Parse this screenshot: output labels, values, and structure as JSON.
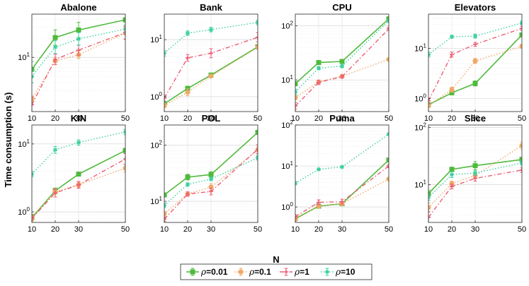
{
  "chart_data": {
    "type": "line",
    "scale": "log-y",
    "x": [
      10,
      20,
      30,
      50
    ],
    "xlabel": "N",
    "ylabel": "Time consumption (s)",
    "legend": {
      "placement": "bottom-center",
      "entries": [
        {
          "name": "ρ=0.01",
          "symbol": "ρ",
          "value": "=0.01",
          "color": "#4fba3c",
          "marker": "square",
          "dash": "solid"
        },
        {
          "name": "ρ=0.1",
          "symbol": "ρ",
          "value": "=0.1",
          "color": "#f0a866",
          "marker": "circle",
          "dash": "dot"
        },
        {
          "name": "ρ=1",
          "symbol": "ρ",
          "value": "=1",
          "color": "#ee5c73",
          "marker": "plus",
          "dash": "dashdot"
        },
        {
          "name": "ρ=10",
          "symbol": "ρ",
          "value": "=10",
          "color": "#3dcf9f",
          "marker": "asterisk",
          "dash": "dot"
        }
      ]
    },
    "panels": [
      {
        "title": "Abalone",
        "yrange": [
          1.4,
          48
        ],
        "yticks": [
          {
            "value": 10,
            "label": "10",
            "exp": "1"
          }
        ],
        "series": [
          [
            6.5,
            20.5,
            27,
            39
          ],
          [
            2.2,
            8.8,
            11,
            24
          ],
          [
            1.8,
            9.3,
            13,
            24.5
          ],
          [
            5,
            14.5,
            19.5,
            28
          ]
        ],
        "errors": [
          [
            0.12,
            0.12,
            0.12,
            0.1
          ],
          [
            0.05,
            0.06,
            0.06,
            0.1
          ],
          [
            0.12,
            0.08,
            0.08,
            0.1
          ],
          [
            0.1,
            0.1,
            0.1,
            0.06
          ]
        ]
      },
      {
        "title": "Bank",
        "yrange": [
          0.55,
          28
        ],
        "yticks": [
          {
            "value": 1,
            "label": "10",
            "exp": "0"
          },
          {
            "value": 10,
            "label": "10",
            "exp": "1"
          }
        ],
        "series": [
          [
            0.75,
            1.4,
            2.4,
            7.5
          ],
          [
            0.7,
            1.2,
            2.3,
            7.3
          ],
          [
            0.95,
            4.8,
            5.8,
            11
          ],
          [
            5.8,
            13,
            15,
            20
          ]
        ],
        "errors": [
          [
            0.04,
            0.04,
            0.03,
            0.02
          ],
          [
            0.04,
            0.06,
            0.03,
            0.02
          ],
          [
            0.05,
            0.06,
            0.08,
            0.08
          ],
          [
            0.05,
            0.04,
            0.04,
            0.04
          ]
        ]
      },
      {
        "title": "CPU",
        "yrange": [
          2.6,
          165
        ],
        "yticks": [
          {
            "value": 10,
            "label": "10",
            "exp": "1"
          },
          {
            "value": 100,
            "label": "10",
            "exp": "2"
          }
        ],
        "series": [
          [
            8.5,
            21,
            22,
            135
          ],
          [
            4.7,
            9.2,
            11.7,
            24
          ],
          [
            3.3,
            9,
            11.5,
            88
          ],
          [
            6,
            16.5,
            18,
            125
          ]
        ],
        "errors": [
          [
            0.03,
            0.03,
            0.03,
            0.02
          ],
          [
            0.04,
            0.03,
            0.03,
            0.02
          ],
          [
            0.06,
            0.04,
            0.03,
            0.03
          ],
          [
            0.05,
            0.03,
            0.03,
            0.03
          ]
        ]
      },
      {
        "title": "Elevators",
        "yrange": [
          0.55,
          48
        ],
        "yticks": [
          {
            "value": 1,
            "label": "10",
            "exp": "0"
          },
          {
            "value": 10,
            "label": "10",
            "exp": "1"
          }
        ],
        "series": [
          [
            0.75,
            1.3,
            2,
            18.5
          ],
          [
            0.72,
            1.5,
            5.6,
            11
          ],
          [
            0.9,
            7.5,
            12,
            25
          ],
          [
            7.5,
            17,
            17.5,
            32
          ]
        ],
        "errors": [
          [
            0.04,
            0.04,
            0.05,
            0.02
          ],
          [
            0.04,
            0.05,
            0.05,
            0.04
          ],
          [
            0.05,
            0.05,
            0.04,
            0.04
          ],
          [
            0.05,
            0.03,
            0.04,
            0.04
          ]
        ]
      },
      {
        "title": "KIN",
        "yrange": [
          0.7,
          19
        ],
        "yticks": [
          {
            "value": 1,
            "label": "10",
            "exp": "0"
          },
          {
            "value": 10,
            "label": "10",
            "exp": "1"
          }
        ],
        "series": [
          [
            0.82,
            2.05,
            3.6,
            8
          ],
          [
            0.8,
            2,
            2.5,
            4.4
          ],
          [
            0.8,
            1.9,
            2.5,
            6
          ],
          [
            3.6,
            8.2,
            10.5,
            15
          ]
        ],
        "errors": [
          [
            0.04,
            0.04,
            0.03,
            0.03
          ],
          [
            0.04,
            0.04,
            0.04,
            0.06
          ],
          [
            0.06,
            0.06,
            0.05,
            0.08
          ],
          [
            0.04,
            0.05,
            0.04,
            0.04
          ]
        ]
      },
      {
        "title": "POL",
        "yrange": [
          4.2,
          230
        ],
        "yticks": [
          {
            "value": 10,
            "label": "10",
            "exp": "1"
          },
          {
            "value": 100,
            "label": "10",
            "exp": "2"
          }
        ],
        "series": [
          [
            13,
            27,
            30,
            170
          ],
          [
            6,
            13.5,
            18,
            82
          ],
          [
            4.8,
            13.5,
            15,
            85
          ],
          [
            8.5,
            20,
            25,
            60
          ]
        ],
        "errors": [
          [
            0.03,
            0.05,
            0.05,
            0.02
          ],
          [
            0.04,
            0.03,
            0.06,
            0.06
          ],
          [
            0.04,
            0.04,
            0.06,
            0.08
          ],
          [
            0.04,
            0.03,
            0.03,
            0.04
          ]
        ]
      },
      {
        "title": "Puma",
        "yrange": [
          0.42,
          100
        ],
        "yticks": [
          {
            "value": 1,
            "label": "10",
            "exp": "0"
          },
          {
            "value": 10,
            "label": "10",
            "exp": "1"
          },
          {
            "value": 100,
            "label": "10",
            "exp": "2"
          }
        ],
        "series": [
          [
            0.52,
            1.05,
            1.2,
            14
          ],
          [
            0.5,
            1.05,
            1.2,
            4.8
          ],
          [
            0.58,
            1.3,
            1.35,
            10
          ],
          [
            3.8,
            8.3,
            9.5,
            60
          ]
        ],
        "errors": [
          [
            0.03,
            0.02,
            0.03,
            0.02
          ],
          [
            0.03,
            0.02,
            0.02,
            0.02
          ],
          [
            0.05,
            0.06,
            0.06,
            0.04
          ],
          [
            0.04,
            0.03,
            0.03,
            0.02
          ]
        ]
      },
      {
        "title": "Slice",
        "yrange": [
          2.2,
          110
        ],
        "yticks": [
          {
            "value": 10,
            "label": "10",
            "exp": "1"
          },
          {
            "value": 100,
            "label": "10",
            "exp": "2"
          }
        ],
        "series": [
          [
            7,
            18.5,
            21.5,
            27.5
          ],
          [
            4,
            10.5,
            14.5,
            48
          ],
          [
            2.7,
            9.3,
            12.9,
            18
          ],
          [
            6,
            15,
            16,
            24
          ]
        ],
        "errors": [
          [
            0.06,
            0.04,
            0.07,
            0.04
          ],
          [
            0.08,
            0.04,
            0.04,
            0.06
          ],
          [
            0.1,
            0.04,
            0.05,
            0.04
          ],
          [
            0.05,
            0.05,
            0.04,
            0.04
          ]
        ]
      }
    ]
  }
}
